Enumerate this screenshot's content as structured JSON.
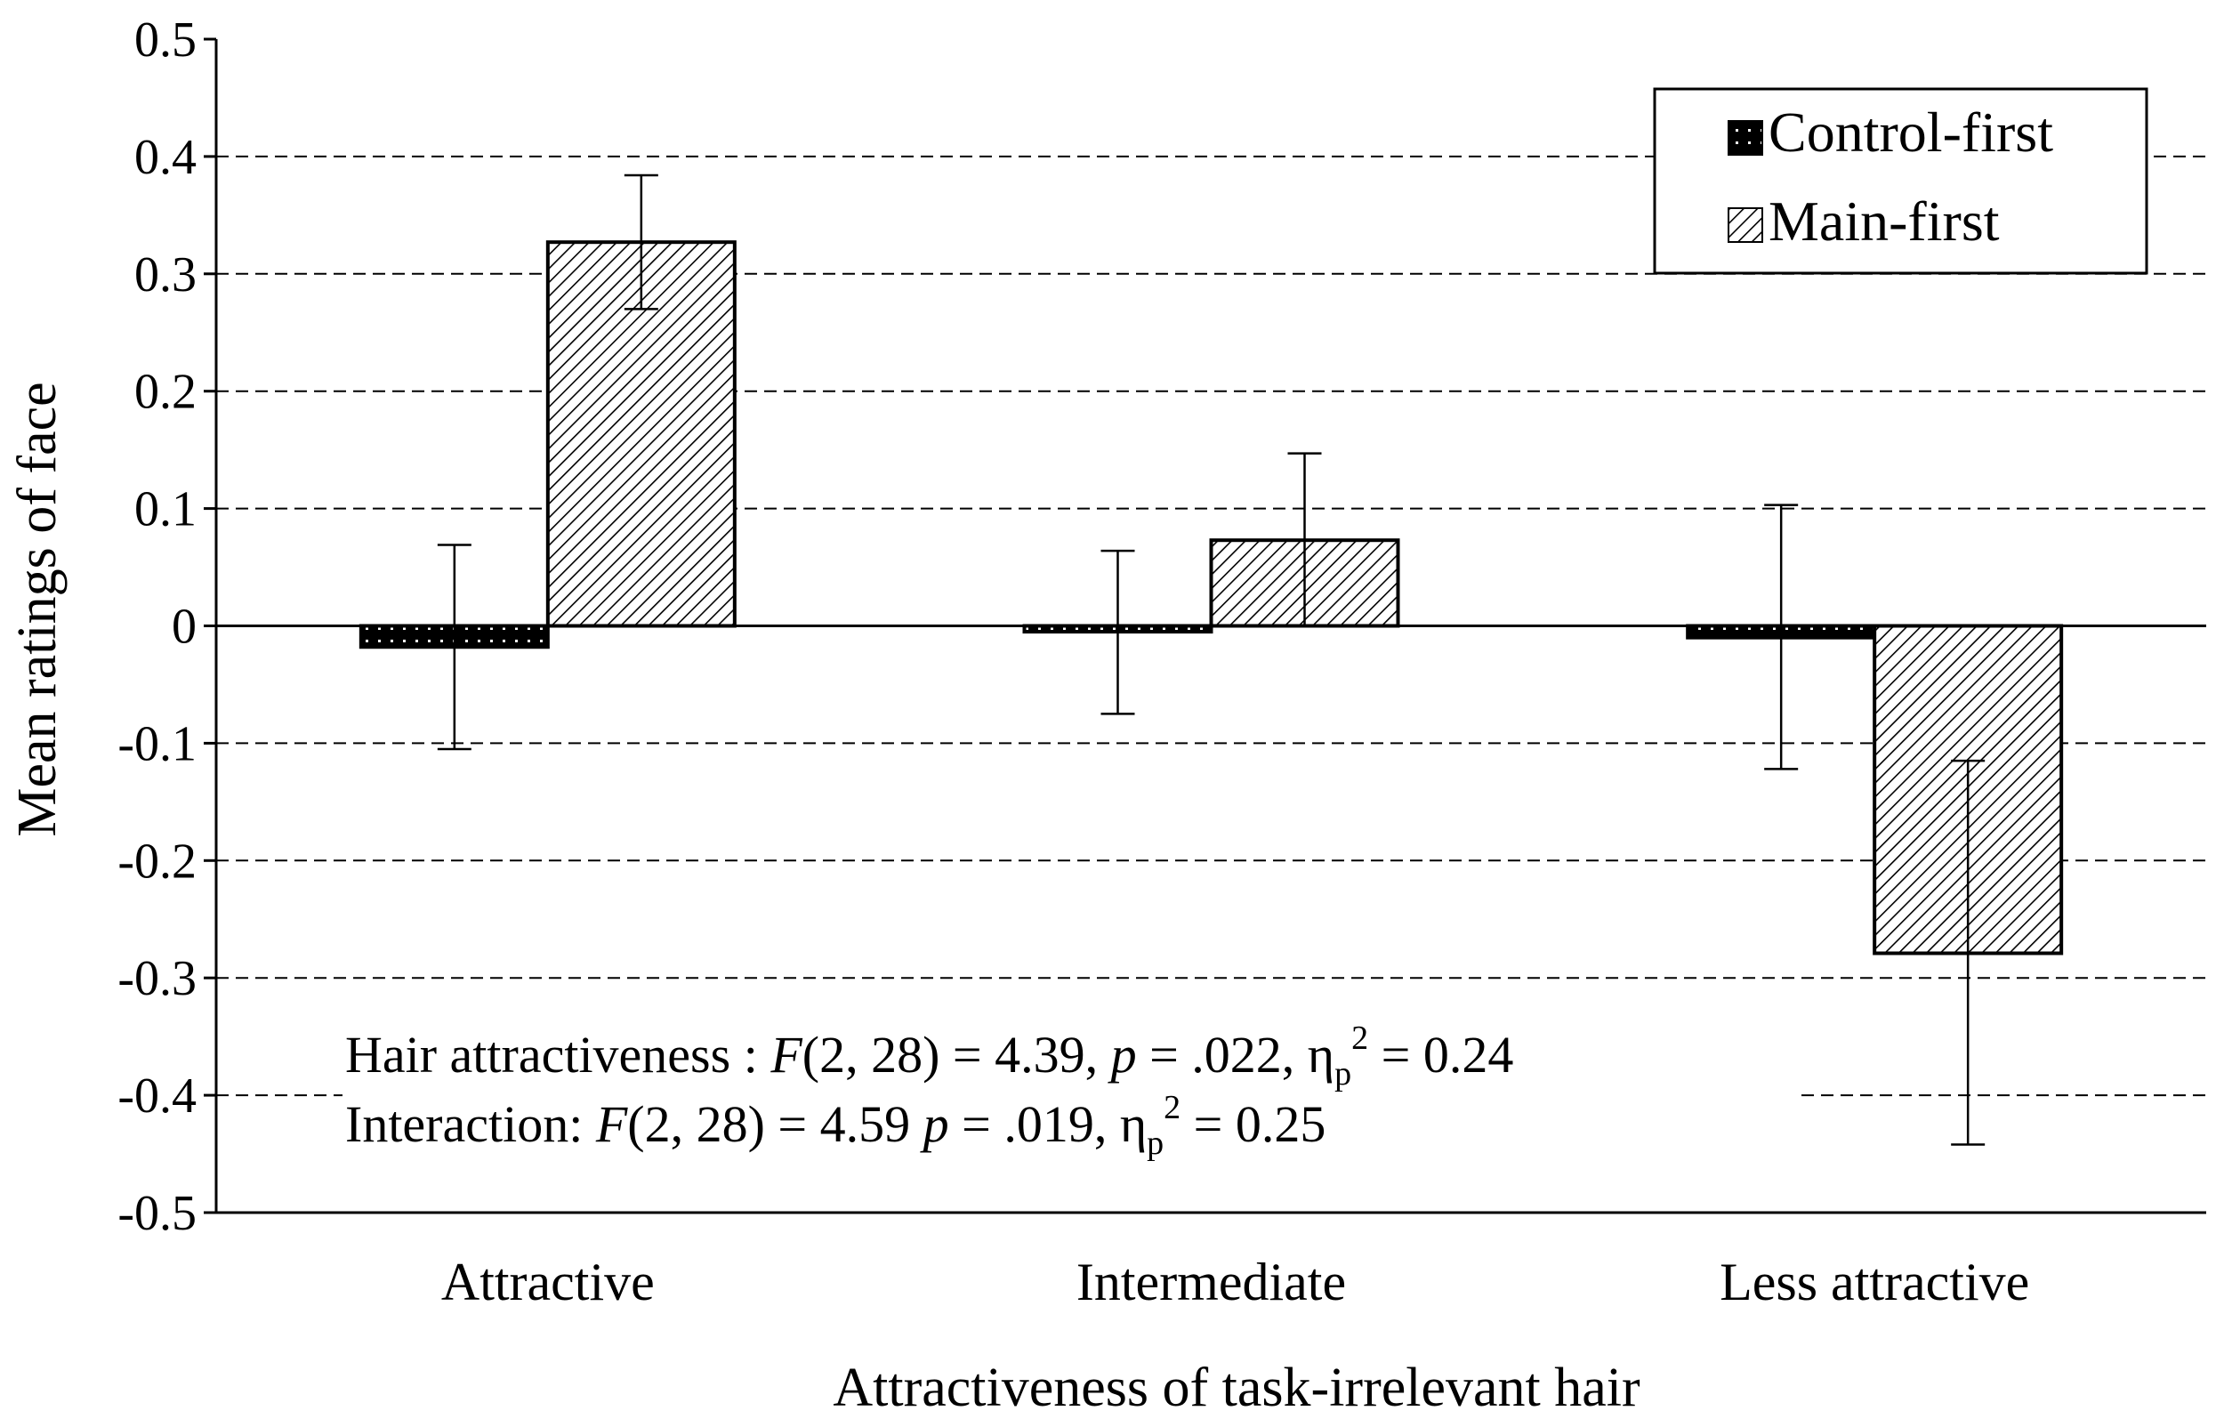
{
  "chart_data": {
    "type": "bar",
    "title": "",
    "xlabel": "Attractiveness of task-irrelevant hair",
    "ylabel": "Mean ratings of face",
    "ylim": [
      -0.5,
      0.5
    ],
    "yticks": [
      "0.5",
      "0.4",
      "0.3",
      "0.2",
      "0.1",
      "0",
      "-0.1",
      "-0.2",
      "-0.3",
      "-0.4",
      "-0.5"
    ],
    "categories": [
      "Attractive",
      "Intermediate",
      "Less attractive"
    ],
    "grid": "dashed horizontal",
    "legend_position": "top-right",
    "series": [
      {
        "name": "Control-first",
        "values": [
          -0.018,
          -0.005,
          -0.01
        ],
        "error_low": [
          -0.105,
          -0.075,
          -0.122
        ],
        "error_high": [
          0.069,
          0.064,
          0.103
        ],
        "fill": "dotted-black"
      },
      {
        "name": "Main-first",
        "values": [
          0.327,
          0.073,
          -0.279
        ],
        "error_low": [
          0.27,
          0.0,
          -0.442
        ],
        "error_high": [
          0.384,
          0.147,
          -0.115
        ],
        "fill": "diagonal-hatch"
      }
    ],
    "annotations": {
      "line1": {
        "prefix": "Hair attractiveness : ",
        "F": "F",
        "df": "(2, 28) = 4.39, ",
        "p": "p",
        "p_val": " = .022, η",
        "sub": "p",
        "sup": "2",
        "eff": " = 0.24"
      },
      "line2": {
        "prefix": "Interaction: ",
        "F": "F",
        "df": "(2, 28) = 4.59 ",
        "p": "p",
        "p_val": " = .019, η",
        "sub": "p",
        "sup": "2",
        "eff": " = 0.25"
      }
    }
  }
}
